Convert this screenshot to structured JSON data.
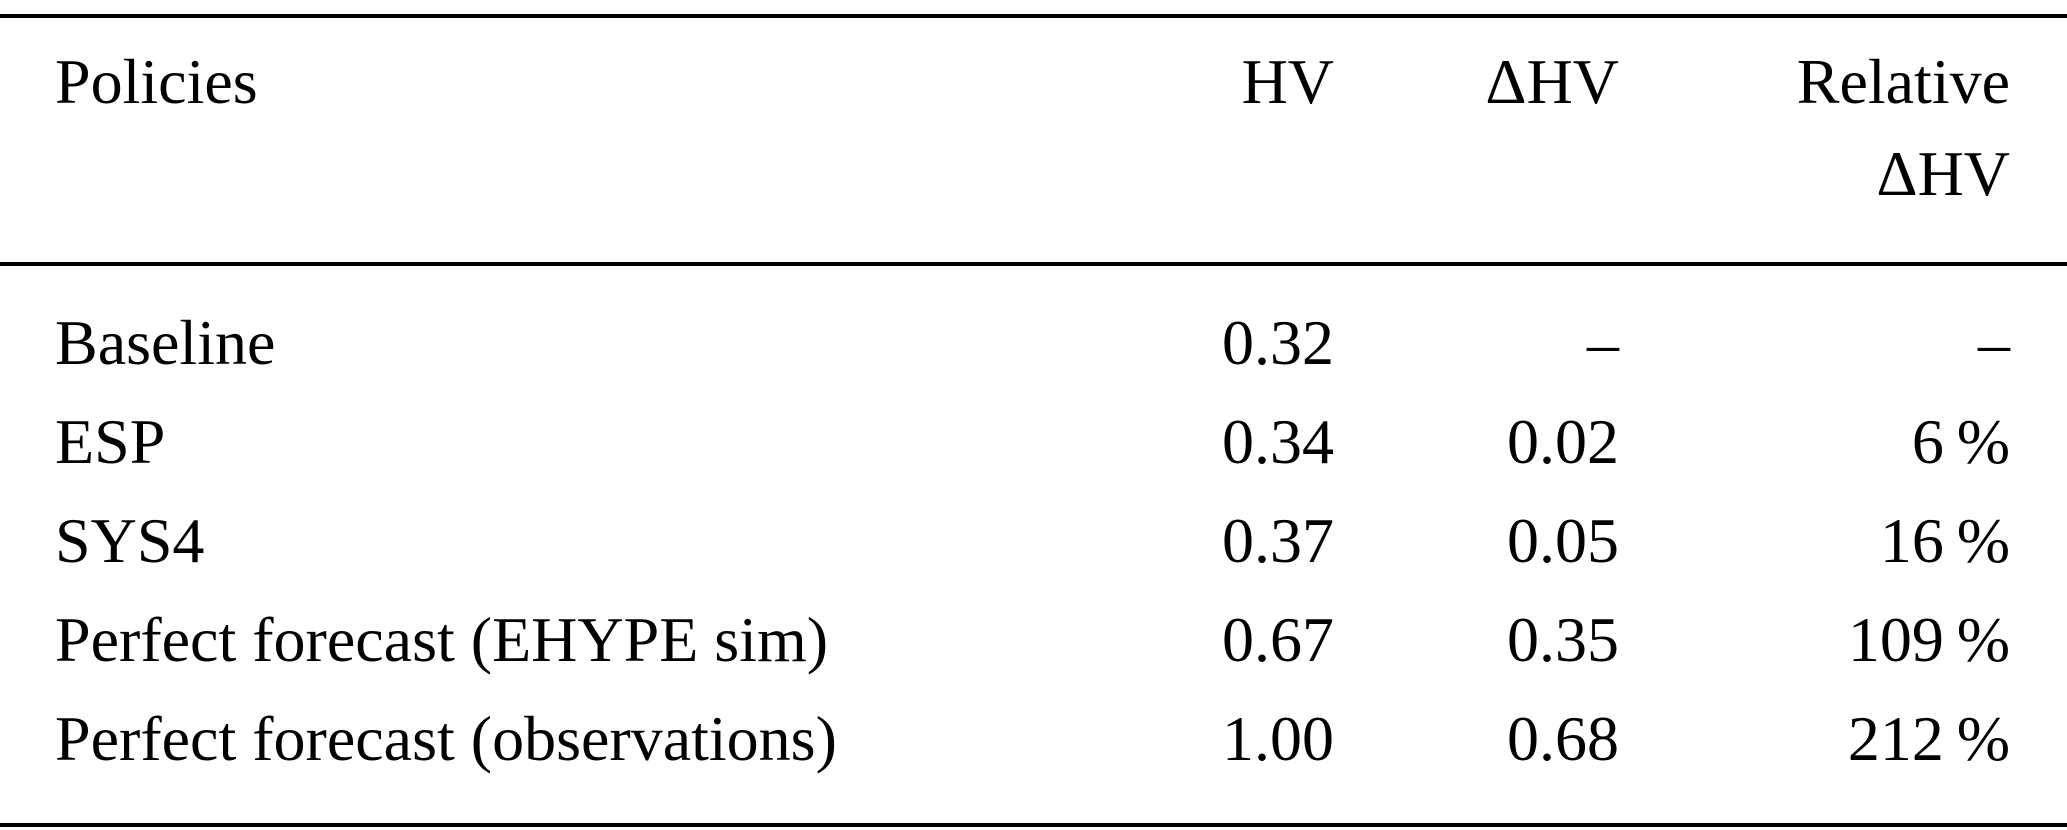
{
  "table": {
    "header": {
      "policies": "Policies",
      "hv": "HV",
      "delta_hv": "ΔHV",
      "relative_line1": "Relative",
      "relative_line2": "ΔHV"
    },
    "rows": [
      {
        "policy": "Baseline",
        "hv": "0.32",
        "delta_hv": "–",
        "relative": "–"
      },
      {
        "policy": "ESP",
        "hv": "0.34",
        "delta_hv": "0.02",
        "relative": "6 %"
      },
      {
        "policy": "SYS4",
        "hv": "0.37",
        "delta_hv": "0.05",
        "relative": "16 %"
      },
      {
        "policy": "Perfect forecast (EHYPE sim)",
        "hv": "0.67",
        "delta_hv": "0.35",
        "relative": "109 %"
      },
      {
        "policy": "Perfect forecast (observations)",
        "hv": "1.00",
        "delta_hv": "0.68",
        "relative": "212 %"
      }
    ]
  }
}
